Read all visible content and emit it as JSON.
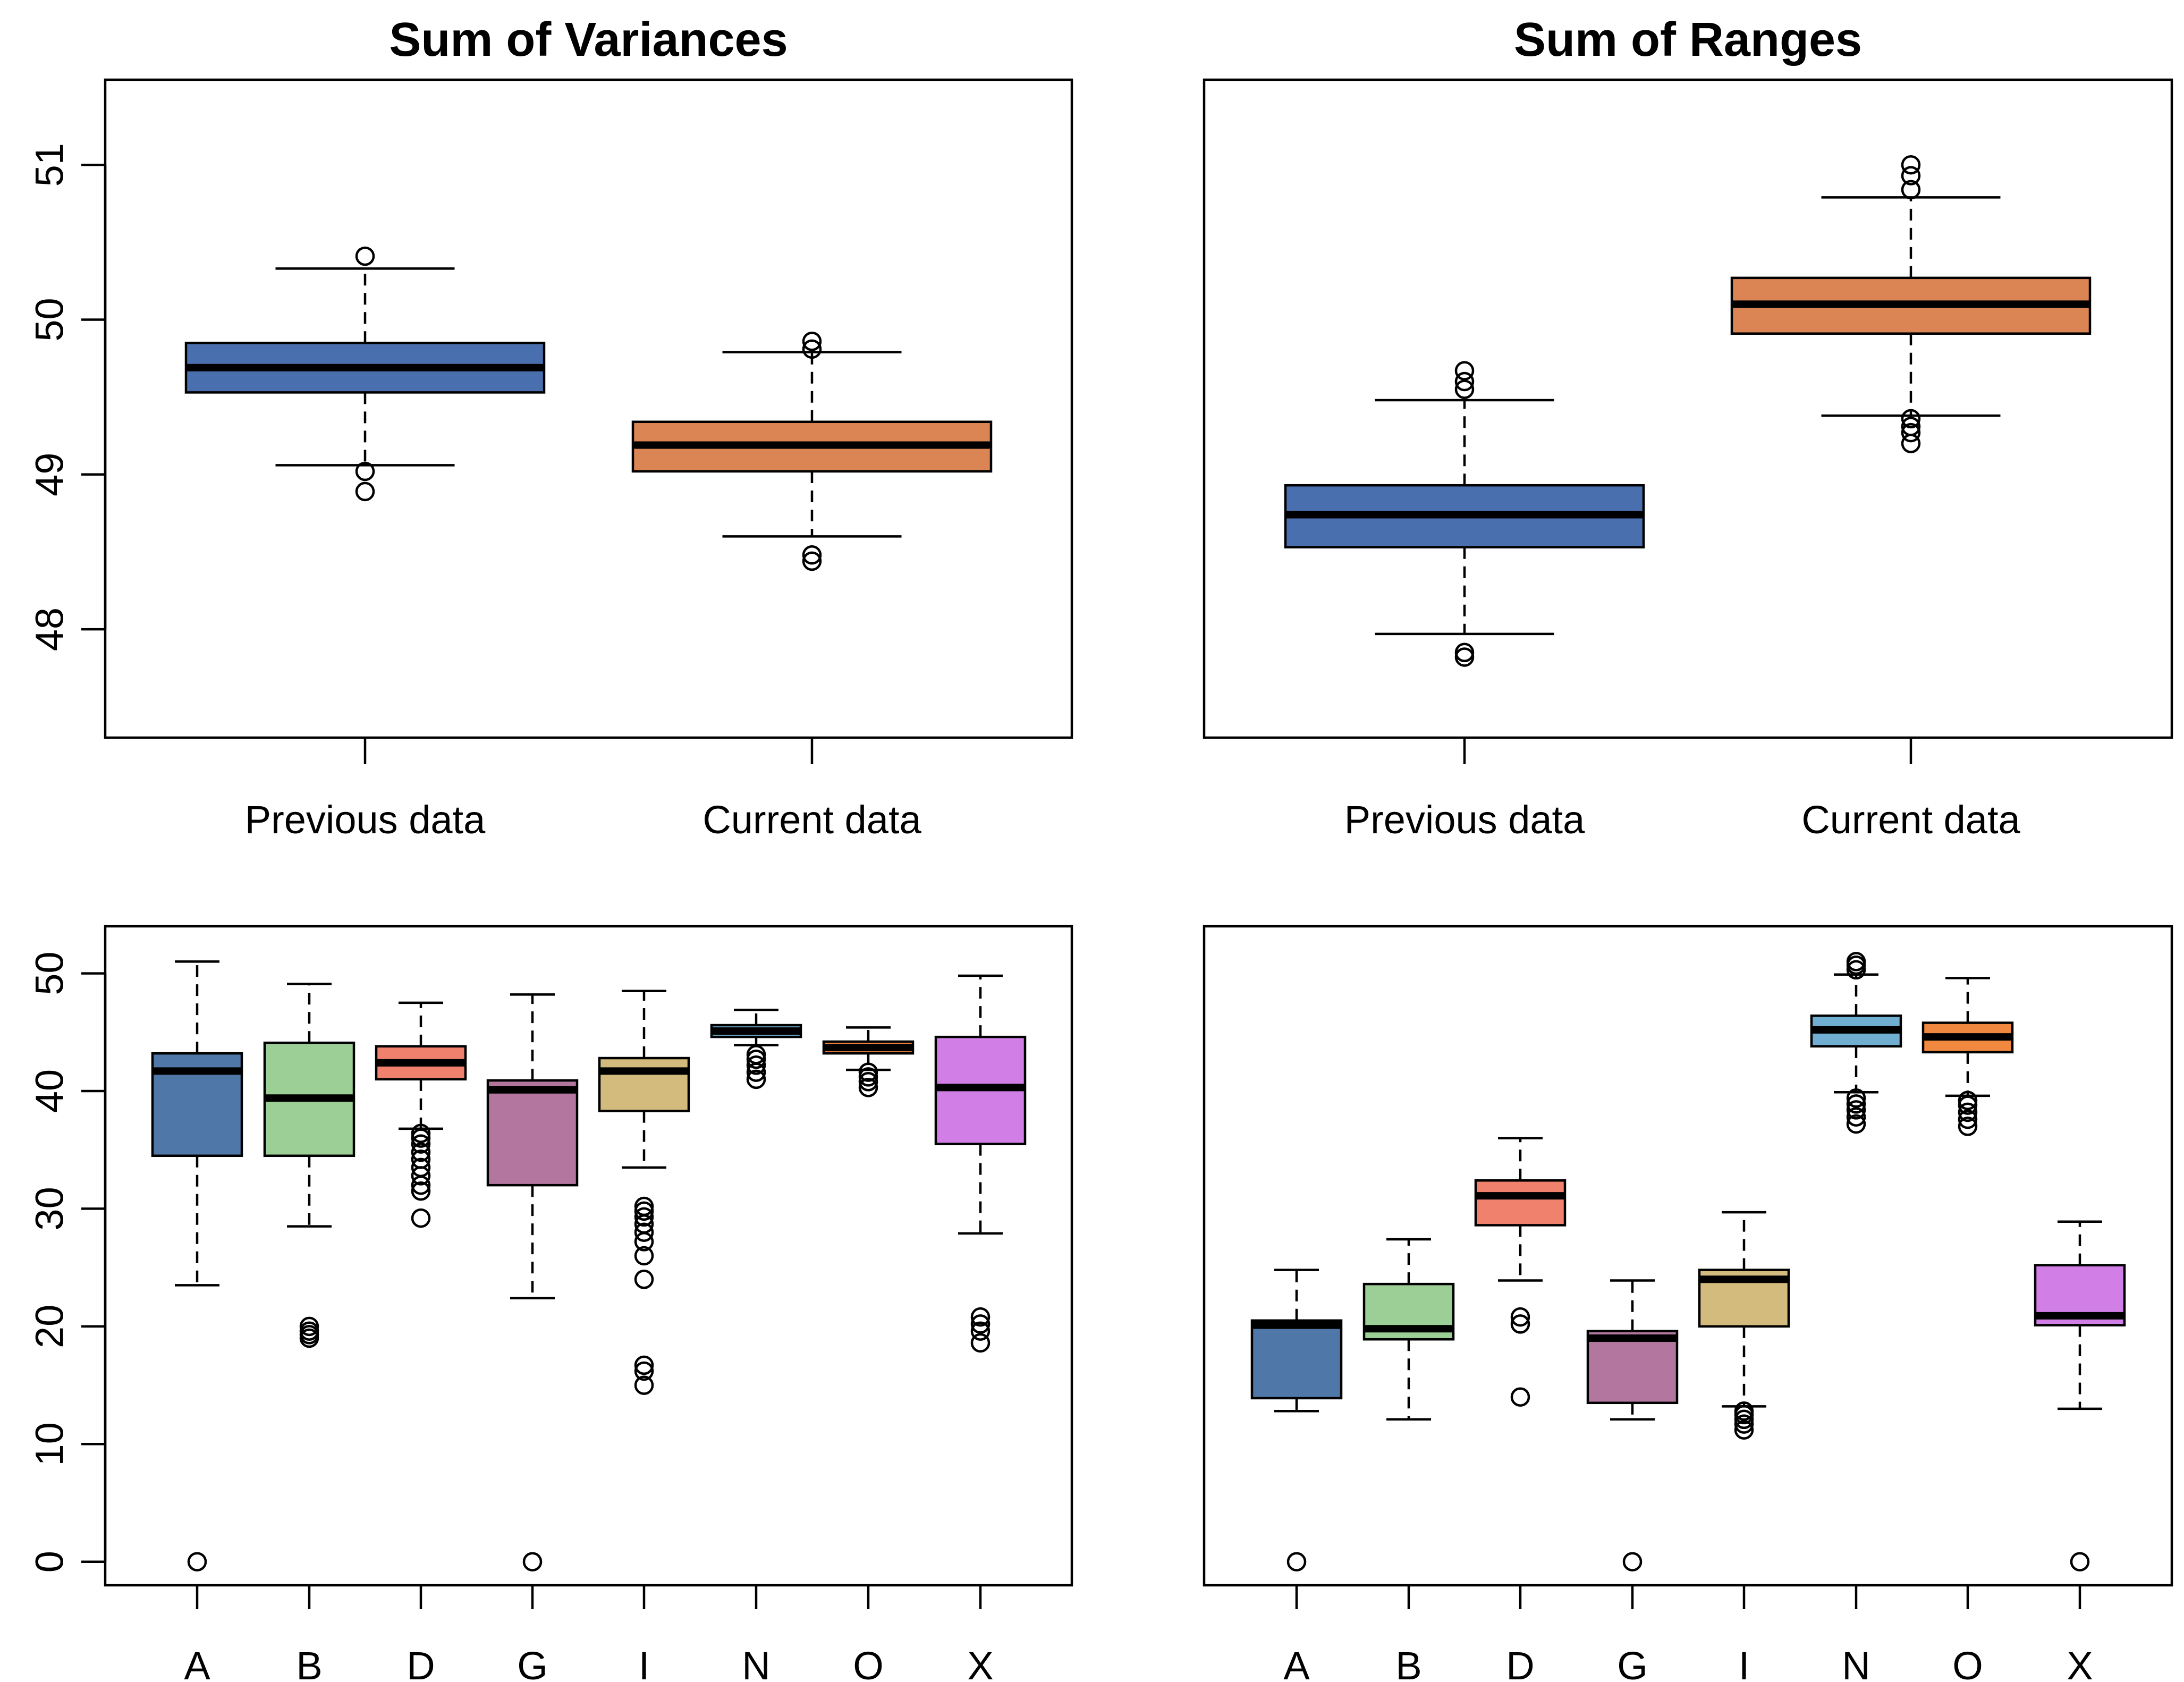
{
  "chart_data": [
    {
      "type": "boxplot",
      "title": "Sum of Variances",
      "xlabel": "",
      "ylabel": "",
      "ylim": [
        47.3,
        51.55
      ],
      "yticks": [
        48,
        49,
        50,
        51
      ],
      "categories": [
        "Previous data",
        "Current data"
      ],
      "boxes": [
        {
          "category": "Previous data",
          "color": "#4a6fae",
          "lower_whisker": 49.06,
          "q1": 49.53,
          "median": 49.69,
          "q3": 49.85,
          "upper_whisker": 50.33,
          "outliers": [
            48.89,
            49.02,
            50.41
          ]
        },
        {
          "category": "Current data",
          "color": "#db8454",
          "lower_whisker": 48.6,
          "q1": 49.02,
          "median": 49.19,
          "q3": 49.34,
          "upper_whisker": 49.79,
          "outliers": [
            48.44,
            48.48,
            49.81,
            49.86
          ]
        }
      ]
    },
    {
      "type": "boxplot",
      "title": "Sum of Ranges",
      "xlabel": "",
      "ylabel": "",
      "ylim": [
        47.3,
        51.55
      ],
      "yticks": [],
      "categories": [
        "Previous data",
        "Current data"
      ],
      "boxes": [
        {
          "category": "Previous data",
          "color": "#4a6fae",
          "lower_whisker": 47.97,
          "q1": 48.53,
          "median": 48.74,
          "q3": 48.93,
          "upper_whisker": 49.48,
          "outliers": [
            47.82,
            47.85,
            49.55,
            49.6,
            49.67
          ]
        },
        {
          "category": "Current data",
          "color": "#db8454",
          "lower_whisker": 49.38,
          "q1": 49.91,
          "median": 50.1,
          "q3": 50.27,
          "upper_whisker": 50.79,
          "outliers": [
            49.2,
            49.27,
            49.31,
            49.36,
            50.84,
            50.93,
            51.0
          ]
        }
      ]
    },
    {
      "type": "boxplot",
      "title": "",
      "xlabel": "",
      "ylabel": "",
      "ylim": [
        -2,
        54
      ],
      "yticks": [
        0,
        10,
        20,
        30,
        40,
        50
      ],
      "categories": [
        "A",
        "B",
        "D",
        "G",
        "I",
        "N",
        "O",
        "X"
      ],
      "boxes": [
        {
          "category": "A",
          "color": "#4f78a8",
          "lower_whisker": 23.5,
          "q1": 34.5,
          "median": 41.7,
          "q3": 43.2,
          "upper_whisker": 51.0,
          "outliers": [
            0
          ]
        },
        {
          "category": "B",
          "color": "#9ccf96",
          "lower_whisker": 28.5,
          "q1": 34.5,
          "median": 39.4,
          "q3": 44.1,
          "upper_whisker": 49.1,
          "outliers": [
            19.0,
            19.3,
            19.6,
            20.0
          ]
        },
        {
          "category": "D",
          "color": "#f0816d",
          "lower_whisker": 36.8,
          "q1": 41.0,
          "median": 42.4,
          "q3": 43.8,
          "upper_whisker": 47.5,
          "outliers": [
            29.2,
            31.5,
            32.0,
            32.8,
            33.5,
            34.2,
            34.8,
            35.5,
            36.0,
            36.4
          ]
        },
        {
          "category": "G",
          "color": "#b3779f",
          "lower_whisker": 22.4,
          "q1": 32.0,
          "median": 40.1,
          "q3": 40.9,
          "upper_whisker": 48.2,
          "outliers": [
            0
          ]
        },
        {
          "category": "I",
          "color": "#d2bb7c",
          "lower_whisker": 33.5,
          "q1": 38.3,
          "median": 41.7,
          "q3": 42.8,
          "upper_whisker": 48.5,
          "outliers": [
            15.0,
            16.2,
            16.7,
            24.0,
            26.0,
            27.2,
            28.0,
            28.7,
            29.3,
            29.8,
            30.2
          ]
        },
        {
          "category": "N",
          "color": "#70afd1",
          "lower_whisker": 43.9,
          "q1": 44.6,
          "median": 45.1,
          "q3": 45.6,
          "upper_whisker": 46.9,
          "outliers": [
            41.0,
            41.6,
            42.2,
            42.7,
            43.1
          ]
        },
        {
          "category": "O",
          "color": "#f0883f",
          "lower_whisker": 41.8,
          "q1": 43.2,
          "median": 43.7,
          "q3": 44.2,
          "upper_whisker": 45.4,
          "outliers": [
            40.3,
            40.8,
            41.2,
            41.6
          ]
        },
        {
          "category": "X",
          "color": "#d17ee6",
          "lower_whisker": 27.9,
          "q1": 35.5,
          "median": 40.3,
          "q3": 44.6,
          "upper_whisker": 49.8,
          "outliers": [
            18.6,
            19.6,
            20.2,
            20.8
          ]
        }
      ]
    },
    {
      "type": "boxplot",
      "title": "",
      "xlabel": "",
      "ylabel": "",
      "ylim": [
        -2,
        54
      ],
      "yticks": [],
      "categories": [
        "A",
        "B",
        "D",
        "G",
        "I",
        "N",
        "O",
        "X"
      ],
      "boxes": [
        {
          "category": "A",
          "color": "#4f78a8",
          "lower_whisker": 12.8,
          "q1": 13.9,
          "median": 20.1,
          "q3": 20.5,
          "upper_whisker": 24.8,
          "outliers": [
            0
          ]
        },
        {
          "category": "B",
          "color": "#9ccf96",
          "lower_whisker": 12.1,
          "q1": 18.9,
          "median": 19.8,
          "q3": 23.6,
          "upper_whisker": 27.4,
          "outliers": []
        },
        {
          "category": "D",
          "color": "#f0816d",
          "lower_whisker": 23.9,
          "q1": 28.6,
          "median": 31.1,
          "q3": 32.4,
          "upper_whisker": 36.0,
          "outliers": [
            14.0,
            20.2,
            20.8
          ]
        },
        {
          "category": "G",
          "color": "#b3779f",
          "lower_whisker": 12.1,
          "q1": 13.5,
          "median": 19.0,
          "q3": 19.6,
          "upper_whisker": 23.9,
          "outliers": [
            0
          ]
        },
        {
          "category": "I",
          "color": "#d2bb7c",
          "lower_whisker": 13.2,
          "q1": 20.0,
          "median": 24.0,
          "q3": 24.8,
          "upper_whisker": 29.7,
          "outliers": [
            11.2,
            11.7,
            12.1,
            12.5,
            12.8
          ]
        },
        {
          "category": "N",
          "color": "#70afd1",
          "lower_whisker": 39.9,
          "q1": 43.8,
          "median": 45.2,
          "q3": 46.4,
          "upper_whisker": 49.9,
          "outliers": [
            37.2,
            37.8,
            38.4,
            38.9,
            39.4,
            50.3,
            50.7,
            51.0
          ]
        },
        {
          "category": "O",
          "color": "#f0883f",
          "lower_whisker": 39.6,
          "q1": 43.3,
          "median": 44.6,
          "q3": 45.8,
          "upper_whisker": 49.6,
          "outliers": [
            37.0,
            37.6,
            38.2,
            38.8,
            39.2
          ]
        },
        {
          "category": "X",
          "color": "#d17ee6",
          "lower_whisker": 13.0,
          "q1": 20.1,
          "median": 20.9,
          "q3": 25.2,
          "upper_whisker": 28.9,
          "outliers": [
            0
          ]
        }
      ]
    }
  ]
}
